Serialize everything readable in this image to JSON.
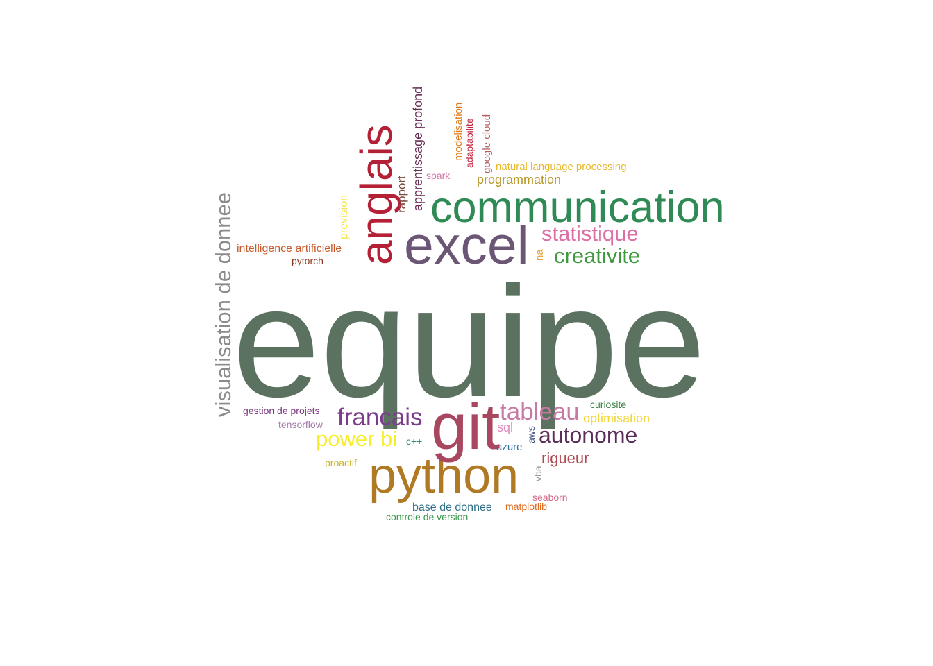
{
  "words": {
    "equipe": {
      "text": "equipe",
      "color": "#5C7260"
    },
    "python": {
      "text": "python",
      "color": "#B07A24"
    },
    "git": {
      "text": "git",
      "color": "#A8475F"
    },
    "excel": {
      "text": "excel",
      "color": "#6B5676"
    },
    "communication": {
      "text": "communication",
      "color": "#2F8A55"
    },
    "anglais": {
      "text": "anglais",
      "color": "#B42036"
    },
    "visualisation_de_donnee": {
      "text": "visualisation de donnee",
      "color": "#8B8B8B"
    },
    "francais": {
      "text": "francais",
      "color": "#7B3C8B"
    },
    "tableau": {
      "text": "tableau",
      "color": "#C87AA6"
    },
    "power_bi": {
      "text": "power bi",
      "color": "#F7EE2A"
    },
    "autonome": {
      "text": "autonome",
      "color": "#5A2E58"
    },
    "statistique": {
      "text": "statistique",
      "color": "#DD6FA7"
    },
    "creativite": {
      "text": "creativite",
      "color": "#3F9A3F"
    },
    "rigueur": {
      "text": "rigueur",
      "color": "#B04A52"
    },
    "programmation": {
      "text": "programmation",
      "color": "#B8962A"
    },
    "apprentissage_profond": {
      "text": "apprentissage profond",
      "color": "#6A2F57"
    },
    "natural_language_processing": {
      "text": "natural language processing",
      "color": "#E8B72E"
    },
    "intelligence_artificielle": {
      "text": "intelligence artificielle",
      "color": "#C75A2A"
    },
    "pytorch": {
      "text": "pytorch",
      "color": "#8A3A1E"
    },
    "rapport": {
      "text": "rapport",
      "color": "#7A4A3C"
    },
    "prevision": {
      "text": "prevision",
      "color": "#F2E74A"
    },
    "spark": {
      "text": "spark",
      "color": "#D473A8"
    },
    "modelisation": {
      "text": "modelisation",
      "color": "#E07B1A"
    },
    "adaptabilite": {
      "text": "adaptabilite",
      "color": "#C41E3A"
    },
    "google_cloud": {
      "text": "google cloud",
      "color": "#B46060"
    },
    "na": {
      "text": "na",
      "color": "#E8A33A"
    },
    "gestion_de_projets": {
      "text": "gestion de projets",
      "color": "#7A3680"
    },
    "tensorflow": {
      "text": "tensorflow",
      "color": "#A87AA8"
    },
    "curiosite": {
      "text": "curiosite",
      "color": "#3E7F45"
    },
    "optimisation": {
      "text": "optimisation",
      "color": "#F1D534"
    },
    "sql": {
      "text": "sql",
      "color": "#E08AC0"
    },
    "aws": {
      "text": "aws",
      "color": "#3C4E86"
    },
    "c_plus_plus": {
      "text": "c++",
      "color": "#2E8A74"
    },
    "azure": {
      "text": "azure",
      "color": "#2D6E9E"
    },
    "proactif": {
      "text": "proactif",
      "color": "#C9B32E"
    },
    "vba": {
      "text": "vba",
      "color": "#9A9A9A"
    },
    "seaborn": {
      "text": "seaborn",
      "color": "#D06A88"
    },
    "matplotlib": {
      "text": "matplotlib",
      "color": "#E06A1E"
    },
    "base_de_donnee": {
      "text": "base de donnee",
      "color": "#2E6F86"
    },
    "controle_de_version": {
      "text": "controle de version",
      "color": "#3A9A4A"
    }
  }
}
